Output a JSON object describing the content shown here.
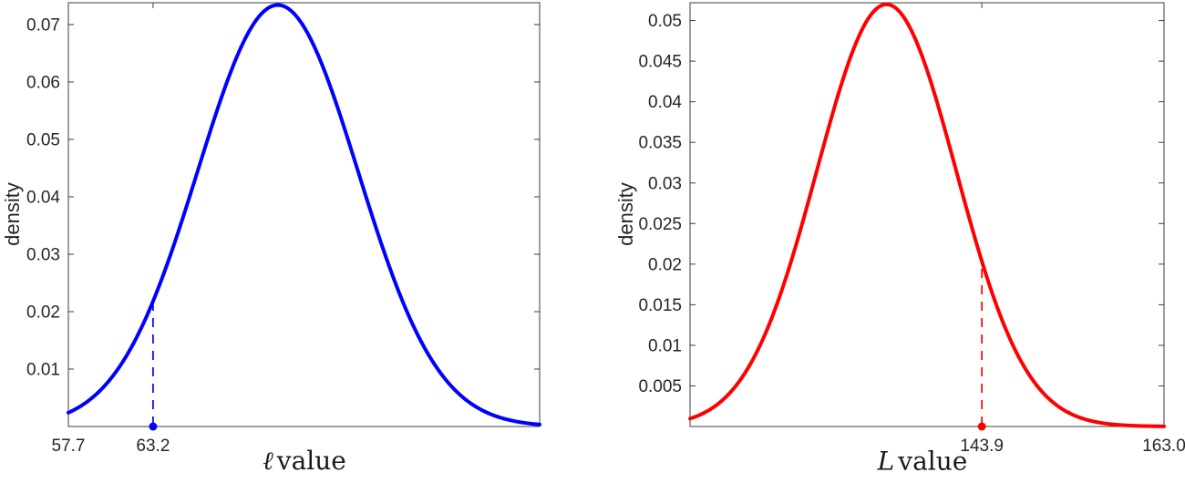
{
  "figure": {
    "background": "#ffffff",
    "axis_color": "#3c3c3c",
    "tick_label_color": "#262626"
  },
  "chart_data": [
    {
      "type": "line",
      "subtype": "density-curve",
      "xlabel_math": "ℓ",
      "xlabel_text": "value",
      "ylabel": "density",
      "color": "#0000ff",
      "line_width": 4,
      "grid": false,
      "legend": null,
      "xlim": [
        57.7,
        88.3
      ],
      "ylim": [
        0,
        0.0738
      ],
      "xticks": [
        {
          "value": 57.7,
          "label": "57.7"
        },
        {
          "value": 63.2,
          "label": "63.2"
        }
      ],
      "yticks": [
        {
          "value": 0.01,
          "label": "0.01"
        },
        {
          "value": 0.02,
          "label": "0.02"
        },
        {
          "value": 0.03,
          "label": "0.03"
        },
        {
          "value": 0.04,
          "label": "0.04"
        },
        {
          "value": 0.05,
          "label": "0.05"
        },
        {
          "value": 0.06,
          "label": "0.06"
        },
        {
          "value": 0.07,
          "label": "0.07"
        }
      ],
      "curve": {
        "shape": "gaussian",
        "mean": 71.3,
        "sd": 5.2,
        "peak": 0.0734
      },
      "points": [
        [
          57.7,
          0.0024
        ],
        [
          58,
          0.0028
        ],
        [
          60,
          0.0069
        ],
        [
          62,
          0.0148
        ],
        [
          63.2,
          0.0219
        ],
        [
          64,
          0.0274
        ],
        [
          66,
          0.0437
        ],
        [
          68,
          0.06
        ],
        [
          70,
          0.0711
        ],
        [
          71.3,
          0.0734
        ],
        [
          73,
          0.0696
        ],
        [
          75,
          0.057
        ],
        [
          77,
          0.0402
        ],
        [
          79,
          0.0245
        ],
        [
          81,
          0.0129
        ],
        [
          83,
          0.0058
        ],
        [
          85,
          0.0023
        ],
        [
          87,
          0.0008
        ],
        [
          88.3,
          0.0004
        ]
      ],
      "marker": {
        "x": 63.2,
        "y": 0.0219,
        "style": "dashed-vertical-line-with-dot"
      }
    },
    {
      "type": "line",
      "subtype": "density-curve",
      "xlabel_math": "L",
      "xlabel_text": "value",
      "ylabel": "density",
      "color": "#ff0000",
      "line_width": 4,
      "grid": false,
      "legend": null,
      "xlim": [
        113.3,
        163.0
      ],
      "ylim": [
        0,
        0.0522
      ],
      "xticks": [
        {
          "value": 143.9,
          "label": "143.9"
        },
        {
          "value": 163.0,
          "label": "163.0"
        }
      ],
      "yticks": [
        {
          "value": 0.005,
          "label": "0.005"
        },
        {
          "value": 0.01,
          "label": "0.01"
        },
        {
          "value": 0.015,
          "label": "0.015"
        },
        {
          "value": 0.02,
          "label": "0.02"
        },
        {
          "value": 0.025,
          "label": "0.025"
        },
        {
          "value": 0.03,
          "label": "0.03"
        },
        {
          "value": 0.035,
          "label": "0.035"
        },
        {
          "value": 0.04,
          "label": "0.04"
        },
        {
          "value": 0.045,
          "label": "0.045"
        },
        {
          "value": 0.05,
          "label": "0.05"
        }
      ],
      "curve": {
        "shape": "gaussian",
        "mean": 133.9,
        "sd": 7.3,
        "peak": 0.052
      },
      "points": [
        [
          113.3,
          0.001
        ],
        [
          116,
          0.0026
        ],
        [
          120,
          0.0085
        ],
        [
          124,
          0.0207
        ],
        [
          128,
          0.0375
        ],
        [
          131,
          0.0481
        ],
        [
          133.9,
          0.052
        ],
        [
          137,
          0.0475
        ],
        [
          140,
          0.0367
        ],
        [
          143.9,
          0.0204
        ],
        [
          147,
          0.0104
        ],
        [
          151,
          0.0034
        ],
        [
          155,
          0.0008
        ],
        [
          159,
          0.0001
        ],
        [
          163,
          2e-05
        ]
      ],
      "marker": {
        "x": 143.9,
        "y": 0.0204,
        "style": "dashed-vertical-line-with-dot"
      }
    }
  ]
}
